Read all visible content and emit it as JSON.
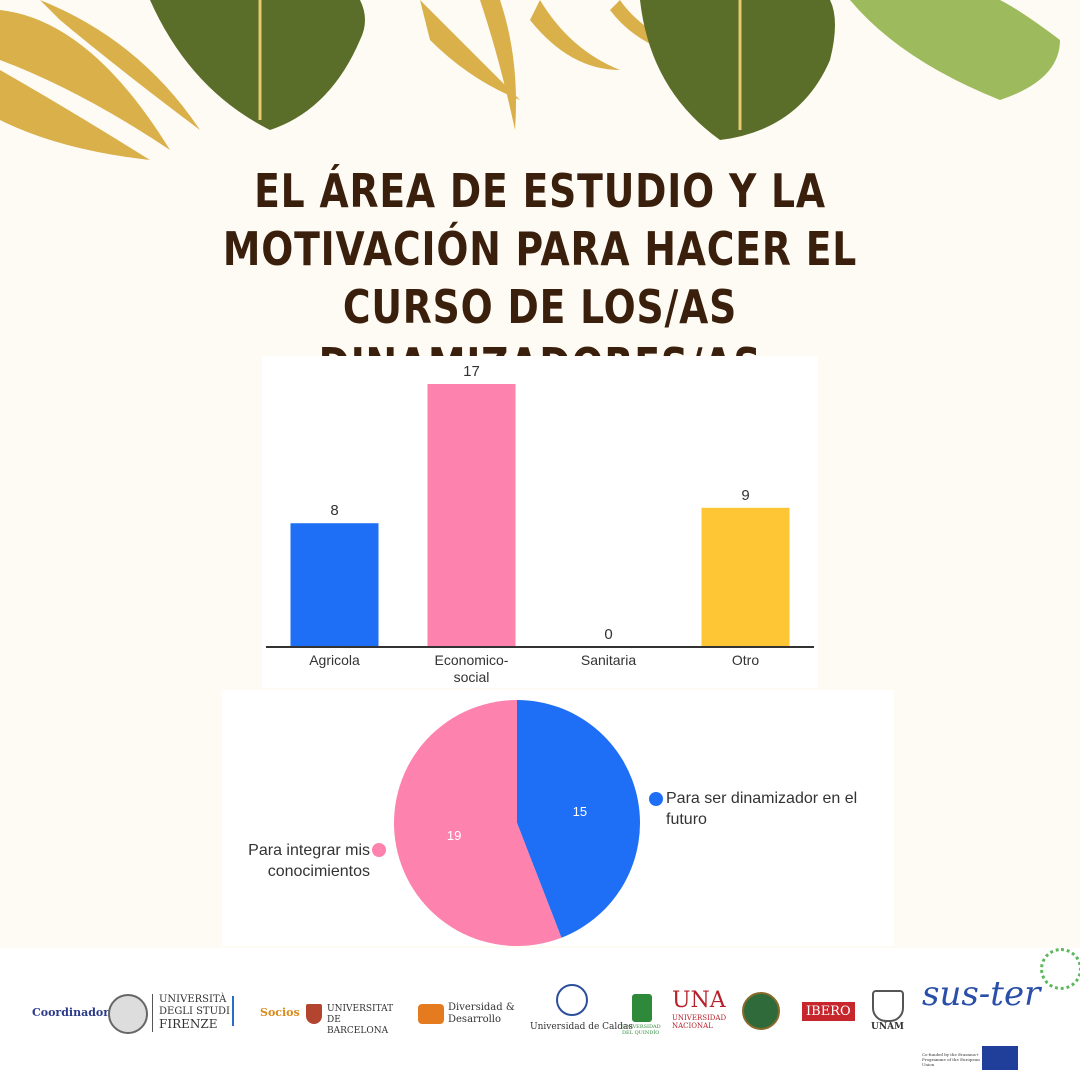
{
  "title": "EL ÁREA DE ESTUDIO Y LA MOTIVACIÓN PARA HACER EL CURSO DE LOS/AS DINAMIZADORES/AS TERRITORIALES",
  "colors": {
    "background": "#fdfbf4",
    "title": "#3a1f0c",
    "leaf_green": "#5a6e2a",
    "leaf_gold": "#d9b04a"
  },
  "chart_data": [
    {
      "type": "bar",
      "categories": [
        "Agricola",
        "Economico-social",
        "Sanitaria",
        "Otro"
      ],
      "category_lines": [
        [
          "Agricola"
        ],
        [
          "Economico-",
          "social"
        ],
        [
          "Sanitaria"
        ],
        [
          "Otro"
        ]
      ],
      "values": [
        8,
        17,
        0,
        9
      ],
      "colors": [
        "#1e6ff5",
        "#fd82ae",
        "#1e6ff5",
        "#fec534"
      ],
      "ylim": [
        0,
        17
      ],
      "title": "",
      "xlabel": "",
      "ylabel": "",
      "grid": false
    },
    {
      "type": "pie",
      "labels": [
        "Para ser dinamizador en el futuro",
        "Para integrar mis conocimientos"
      ],
      "label_lines": [
        [
          "Para ser dinamizador en el",
          "futuro"
        ],
        [
          "Para integrar mis",
          "conocimientos"
        ]
      ],
      "values": [
        15,
        19
      ],
      "colors": [
        "#1e6ff5",
        "#fd82ae"
      ],
      "title": ""
    }
  ],
  "footer": {
    "coordinator_label": "Coordinador",
    "partners_label": "Socios",
    "logos": [
      {
        "name": "firenze",
        "lines": [
          "UNIVERSITÀ",
          "DEGLI STUDI",
          "FIRENZE"
        ]
      },
      {
        "name": "barcelona",
        "text": "UNIVERSITAT DE BARCELONA"
      },
      {
        "name": "diversidad",
        "text": "Diversidad & Desarrollo"
      },
      {
        "name": "caldas",
        "text": "Universidad de Caldas"
      },
      {
        "name": "quindio",
        "text": "UNIVERSIDAD DEL QUINDÍO"
      },
      {
        "name": "una",
        "text": "UNA",
        "sub": "UNIVERSIDAD NACIONAL"
      },
      {
        "name": "ibero",
        "text": "IBERO"
      },
      {
        "name": "unam",
        "text": "UNAM"
      },
      {
        "name": "suster",
        "text": "sus-ter"
      },
      {
        "name": "erasmus",
        "text": "Co-funded by the Erasmus+ Programme of the European Union"
      }
    ]
  }
}
